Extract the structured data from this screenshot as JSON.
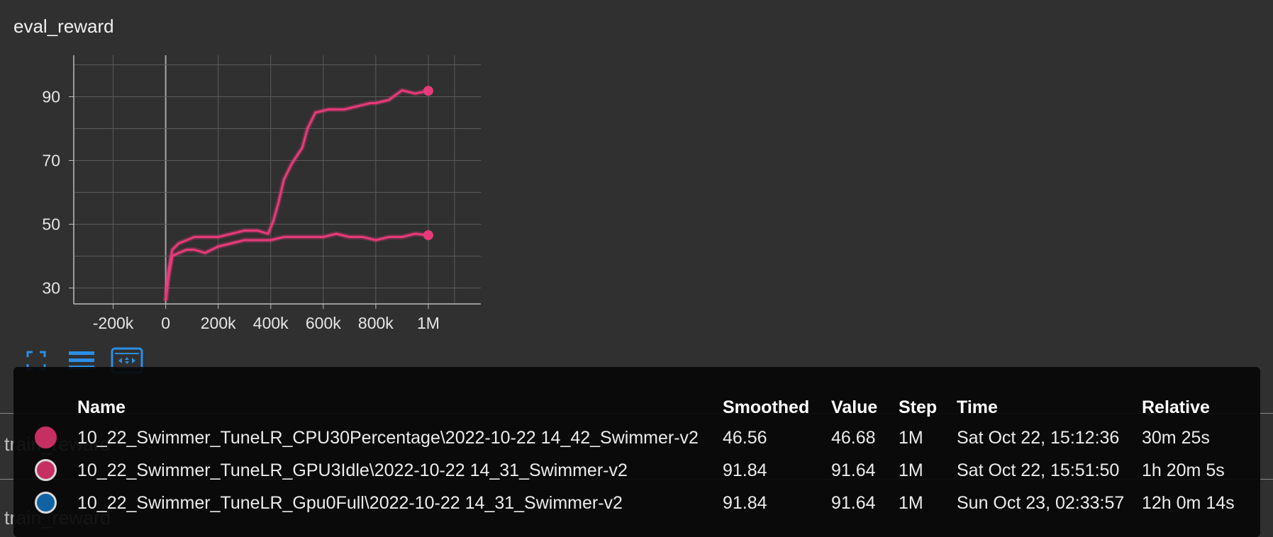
{
  "card": {
    "title": "eval_reward"
  },
  "background_cards": [
    {
      "title": "train_reward"
    },
    {
      "title": "train_reward"
    }
  ],
  "chart_data": {
    "type": "line",
    "title": "eval_reward",
    "xlabel": "",
    "ylabel": "",
    "xlim": [
      -350000,
      1200000
    ],
    "ylim": [
      25,
      103
    ],
    "x_ticks": [
      "-200k",
      "0",
      "200k",
      "400k",
      "600k",
      "800k",
      "1M"
    ],
    "y_ticks": [
      "30",
      "50",
      "70",
      "90"
    ],
    "grid": true,
    "series": [
      {
        "color": "#e83a7a",
        "x": [
          0,
          10000,
          25000,
          50000,
          80000,
          110000,
          150000,
          200000,
          250000,
          300000,
          350000,
          400000,
          450000,
          500000,
          550000,
          600000,
          650000,
          700000,
          750000,
          800000,
          850000,
          900000,
          950000,
          1000000
        ],
        "y": [
          26,
          33,
          40,
          41,
          42,
          42,
          41,
          43,
          44,
          45,
          45,
          45,
          46,
          46,
          46,
          46,
          47,
          46,
          46,
          45,
          46,
          46,
          47,
          46.56
        ]
      },
      {
        "color": "#e83a7a",
        "x": [
          0,
          10000,
          25000,
          50000,
          80000,
          110000,
          150000,
          200000,
          250000,
          300000,
          350000,
          390000,
          410000,
          430000,
          450000,
          480000,
          520000,
          540000,
          570000,
          620000,
          680000,
          730000,
          780000,
          800000,
          850000,
          900000,
          950000,
          1000000
        ],
        "y": [
          26,
          35,
          42,
          44,
          45,
          46,
          46,
          46,
          47,
          48,
          48,
          47,
          51,
          57,
          64,
          69,
          74,
          80,
          85,
          86,
          86,
          87,
          88,
          88,
          89,
          92,
          91,
          91.84
        ]
      }
    ]
  },
  "toolbar": {
    "icons": [
      "fullscreen-icon",
      "list-icon",
      "fit-domain-icon"
    ]
  },
  "tooltip": {
    "headers": {
      "name": "Name",
      "smoothed": "Smoothed",
      "value": "Value",
      "step": "Step",
      "time": "Time",
      "relative": "Relative"
    },
    "rows": [
      {
        "name": "10_22_Swimmer_TuneLR_CPU30Percentage\\2022-10-22 14_42_Swimmer-v2",
        "smoothed": "46.56",
        "value": "46.68",
        "step": "1M",
        "time": "Sat Oct 22, 15:12:36",
        "relative": "30m 25s",
        "color": "#c62f62",
        "border": "#c62f62"
      },
      {
        "name": "10_22_Swimmer_TuneLR_GPU3Idle\\2022-10-22 14_31_Swimmer-v2",
        "smoothed": "91.84",
        "value": "91.64",
        "step": "1M",
        "time": "Sat Oct 22, 15:51:50",
        "relative": "1h 20m 5s",
        "color": "#c62f62",
        "border": "#d9d9d9"
      },
      {
        "name": "10_22_Swimmer_TuneLR_Gpu0Full\\2022-10-22 14_31_Swimmer-v2",
        "smoothed": "91.84",
        "value": "91.64",
        "step": "1M",
        "time": "Sun Oct 23, 02:33:57",
        "relative": "12h 0m 14s",
        "color": "#0f63a3",
        "border": "#d9d9d9"
      }
    ]
  }
}
